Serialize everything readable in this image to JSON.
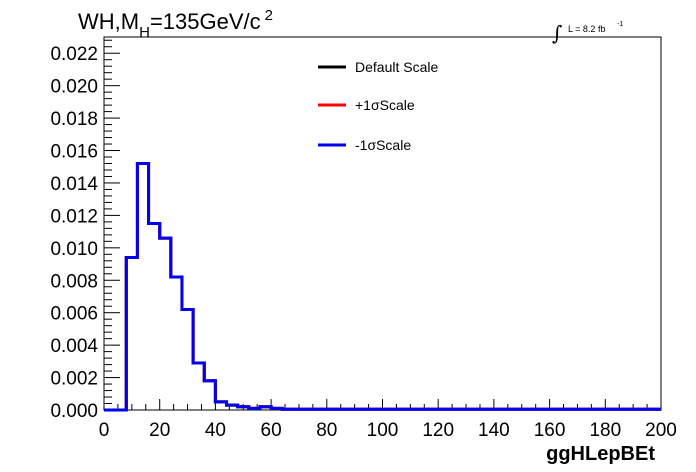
{
  "chart_data": {
    "type": "histogram",
    "title": {
      "prefix": "WH,M",
      "subscript": "H",
      "value": "=135GeV/c",
      "superscript": "2"
    },
    "luminosity": {
      "text": "L = 8.2 fb",
      "superscript": "-1"
    },
    "xlabel": "ggHLepBEt",
    "ylabel": "",
    "xlim": [
      0,
      200
    ],
    "ylim": [
      0,
      0.023
    ],
    "x_ticks": [
      "0",
      "20",
      "40",
      "60",
      "80",
      "100",
      "120",
      "140",
      "160",
      "180",
      "200"
    ],
    "y_ticks": [
      "0.000",
      "0.002",
      "0.004",
      "0.006",
      "0.008",
      "0.010",
      "0.012",
      "0.014",
      "0.016",
      "0.018",
      "0.020",
      "0.022"
    ],
    "legend_position": "top-center",
    "bin_width": 4,
    "series": [
      {
        "name": "Default Scale",
        "color": "#000000",
        "bin_edges_start": 0,
        "values": [
          0,
          0,
          0.0094,
          0.0152,
          0.0115,
          0.0106,
          0.0082,
          0.0062,
          0.0029,
          0.0018,
          0.0005,
          0.0003,
          0.0002,
          0.0001,
          0.0002,
          0.0001,
          5e-05,
          5e-05,
          5e-05,
          5e-05,
          5e-05,
          5e-05,
          5e-05,
          5e-05,
          5e-05,
          5e-05,
          5e-05,
          5e-05,
          5e-05,
          5e-05,
          5e-05,
          5e-05,
          5e-05,
          5e-05,
          5e-05,
          5e-05,
          5e-05,
          5e-05,
          5e-05,
          5e-05,
          5e-05,
          5e-05,
          5e-05,
          5e-05,
          5e-05,
          5e-05,
          5e-05,
          5e-05,
          5e-05,
          5e-05
        ]
      },
      {
        "name": "+1σScale",
        "color": "#ff0000",
        "bin_edges_start": 0,
        "values": [
          0,
          0,
          0.0094,
          0.0152,
          0.0115,
          0.0106,
          0.0082,
          0.0062,
          0.0029,
          0.0018,
          0.0005,
          0.0003,
          0.0002,
          0.0001,
          0.0002,
          0.0001,
          5e-05,
          5e-05,
          5e-05,
          5e-05,
          5e-05,
          5e-05,
          5e-05,
          5e-05,
          5e-05,
          5e-05,
          5e-05,
          5e-05,
          5e-05,
          5e-05,
          5e-05,
          5e-05,
          5e-05,
          5e-05,
          5e-05,
          5e-05,
          5e-05,
          5e-05,
          5e-05,
          5e-05,
          5e-05,
          5e-05,
          5e-05,
          5e-05,
          5e-05,
          5e-05,
          5e-05,
          5e-05,
          5e-05,
          5e-05
        ]
      },
      {
        "name": "-1σScale",
        "color": "#0000ee",
        "bin_edges_start": 0,
        "values": [
          0,
          0,
          0.0094,
          0.0152,
          0.0115,
          0.0106,
          0.0082,
          0.0062,
          0.0029,
          0.0018,
          0.0005,
          0.0003,
          0.0002,
          0.0001,
          0.0002,
          0.0001,
          5e-05,
          5e-05,
          5e-05,
          5e-05,
          5e-05,
          5e-05,
          5e-05,
          5e-05,
          5e-05,
          5e-05,
          5e-05,
          5e-05,
          5e-05,
          5e-05,
          5e-05,
          5e-05,
          5e-05,
          5e-05,
          5e-05,
          5e-05,
          5e-05,
          5e-05,
          5e-05,
          5e-05,
          5e-05,
          5e-05,
          5e-05,
          5e-05,
          5e-05,
          5e-05,
          5e-05,
          5e-05,
          5e-05,
          5e-05
        ]
      }
    ]
  }
}
